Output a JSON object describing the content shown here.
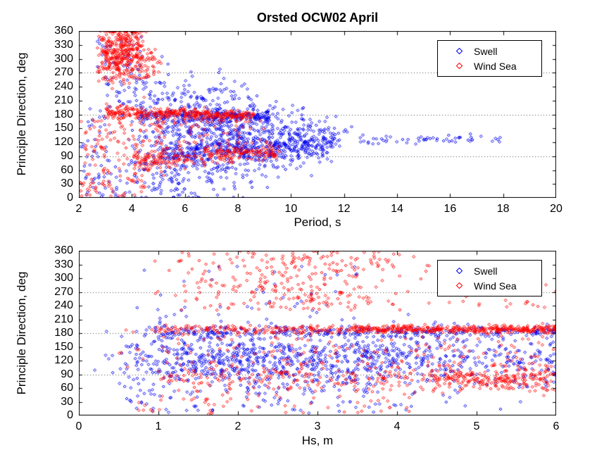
{
  "figure": {
    "title": "Orsted OCW02 April",
    "background": "#ffffff"
  },
  "colors": {
    "swell": "#0000ee",
    "wind_sea": "#ff0000",
    "axis": "#000000",
    "grid": "#000000"
  },
  "legend": {
    "items": [
      {
        "label": "Swell",
        "marker": "diamond",
        "color": "#0000ee"
      },
      {
        "label": "Wind Sea",
        "marker": "diamond",
        "color": "#ff0000"
      }
    ]
  },
  "chart_data": [
    {
      "type": "scatter",
      "title": "Orsted OCW02 April",
      "xlabel": "Period, s",
      "ylabel": "Principle Direction, deg",
      "xlim": [
        2,
        20
      ],
      "ylim": [
        0,
        360
      ],
      "xticks": [
        2,
        4,
        6,
        8,
        10,
        12,
        14,
        16,
        18,
        20
      ],
      "yticks": [
        0,
        30,
        60,
        90,
        120,
        150,
        180,
        210,
        240,
        270,
        300,
        330,
        360
      ],
      "grid_y": [
        90,
        180,
        270
      ],
      "legend_position": "top-right",
      "seed": 101,
      "series": [
        {
          "name": "Swell",
          "color": "#0000ee",
          "marker": "diamond",
          "clusters": [
            {
              "n": 900,
              "x": [
                3.2,
                12.5
              ],
              "xdist": "tri",
              "y": {
                "c": [
                  135,
                  127
                ],
                "s": [
                  92,
                  16
                ]
              }
            },
            {
              "n": 200,
              "x": [
                4.3,
                9.2
              ],
              "y": {
                "c": [
                  179,
                  173
                ],
                "s": [
                  7,
                  5
                ]
              }
            },
            {
              "n": 260,
              "x": [
                5.0,
                11.6
              ],
              "y": {
                "c": [
                  95,
                  116
                ],
                "s": [
                  16,
                  10
                ]
              }
            },
            {
              "n": 55,
              "x": [
                12.6,
                18.0
              ],
              "y": {
                "c": [
                  126,
                  127
                ],
                "s": [
                  5,
                  4
                ]
              }
            },
            {
              "n": 80,
              "x": [
                2.2,
                6.0
              ],
              "y": {
                "u": [
                  2,
                  75
                ]
              }
            },
            {
              "n": 55,
              "x": [
                3.0,
                6.2
              ],
              "y": {
                "u": [
                  195,
                  255
                ]
              }
            },
            {
              "n": 40,
              "x": [
                2.7,
                4.4
              ],
              "y": {
                "u": [
                  245,
                  345
                ]
              }
            },
            {
              "n": 30,
              "x": [
                2.05,
                3.2
              ],
              "y": {
                "u": [
                  40,
                  215
                ]
              }
            }
          ]
        },
        {
          "name": "Wind Sea",
          "color": "#ff0000",
          "marker": "diamond",
          "clusters": [
            {
              "n": 380,
              "x": [
                2.6,
                4.6
              ],
              "xdist": "tri",
              "y": {
                "c": [
                  312,
                  312
                ],
                "s": [
                  33,
                  33
                ]
              }
            },
            {
              "n": 40,
              "x": [
                4.2,
                5.1
              ],
              "y": {
                "u": [
                  255,
                  330
                ]
              }
            },
            {
              "n": 340,
              "x": [
                3.0,
                8.6
              ],
              "y": {
                "c": [
                  185,
                  178
                ],
                "s": [
                  7,
                  5
                ]
              }
            },
            {
              "n": 260,
              "x": [
                4.0,
                9.6
              ],
              "y": {
                "c": [
                  84,
                  100
                ],
                "s": [
                  13,
                  9
                ]
              }
            },
            {
              "n": 120,
              "x": [
                2.05,
                5.2
              ],
              "y": {
                "u": [
                  55,
                  175
                ]
              }
            },
            {
              "n": 55,
              "x": [
                2.05,
                4.5
              ],
              "y": {
                "u": [
                  2,
                  55
                ]
              }
            },
            {
              "n": 50,
              "x": [
                5.0,
                9.0
              ],
              "y": {
                "u": [
                  115,
                  170
                ]
              }
            }
          ]
        }
      ]
    },
    {
      "type": "scatter",
      "title": "",
      "xlabel": "Hs, m",
      "ylabel": "Principle Direction, deg",
      "xlim": [
        0,
        6
      ],
      "ylim": [
        0,
        360
      ],
      "xticks": [
        0,
        1,
        2,
        3,
        4,
        5,
        6
      ],
      "yticks": [
        0,
        30,
        60,
        90,
        120,
        150,
        180,
        210,
        240,
        270,
        300,
        330,
        360
      ],
      "grid_y": [
        90,
        180,
        270
      ],
      "legend_position": "top-right",
      "seed": 202,
      "series": [
        {
          "name": "Swell",
          "color": "#0000ee",
          "marker": "diamond",
          "clusters": [
            {
              "n": 700,
              "x": [
                0.6,
                6.0
              ],
              "y": {
                "c": [
                  122,
                  122
                ],
                "s": [
                  34,
                  34
                ]
              }
            },
            {
              "n": 350,
              "x": [
                1.0,
                4.2
              ],
              "y": {
                "c": [
                  118,
                  118
                ],
                "s": [
                  30,
                  30
                ]
              }
            },
            {
              "n": 300,
              "x": [
                0.8,
                6.0
              ],
              "y": {
                "c": [
                  182,
                  183
                ],
                "s": [
                  6,
                  6
                ]
              }
            },
            {
              "n": 40,
              "x": [
                0.7,
                3.5
              ],
              "y": {
                "u": [
                  210,
                  335
                ]
              }
            },
            {
              "n": 80,
              "x": [
                0.6,
                4.2
              ],
              "y": {
                "u": [
                  5,
                  62
                ]
              }
            },
            {
              "n": 14,
              "x": [
                0.2,
                0.6
              ],
              "y": {
                "u": [
                  60,
                  185
                ]
              }
            }
          ]
        },
        {
          "name": "Wind Sea",
          "color": "#ff0000",
          "marker": "diamond",
          "clusters": [
            {
              "n": 300,
              "x": [
                0.9,
                6.0
              ],
              "y": {
                "c": [
                  188,
                  188
                ],
                "s": [
                  5,
                  5
                ]
              }
            },
            {
              "n": 260,
              "x": [
                3.4,
                6.0
              ],
              "y": {
                "c": [
                  188,
                  188
                ],
                "s": [
                  4,
                  4
                ]
              }
            },
            {
              "n": 300,
              "x": [
                0.8,
                4.6
              ],
              "xdist": "tri",
              "y": {
                "u": [
                  230,
                  360
                ]
              }
            },
            {
              "n": 40,
              "x": [
                4.6,
                6.0
              ],
              "y": {
                "u": [
                  230,
                  330
                ]
              }
            },
            {
              "n": 300,
              "x": [
                1.0,
                6.0
              ],
              "y": {
                "c": [
                  85,
                  85
                ],
                "s": [
                  15,
                  15
                ]
              }
            },
            {
              "n": 150,
              "x": [
                4.4,
                6.0
              ],
              "y": {
                "c": [
                  80,
                  80
                ],
                "s": [
                  13,
                  13
                ]
              }
            },
            {
              "n": 130,
              "x": [
                1.0,
                6.0
              ],
              "y": {
                "u": [
                  108,
                  175
                ]
              }
            },
            {
              "n": 65,
              "x": [
                0.7,
                4.2
              ],
              "y": {
                "u": [
                  3,
                  58
                ]
              }
            },
            {
              "n": 8,
              "x": [
                0.5,
                0.9
              ],
              "y": {
                "u": [
                  100,
                  200
                ]
              }
            }
          ]
        }
      ]
    }
  ]
}
